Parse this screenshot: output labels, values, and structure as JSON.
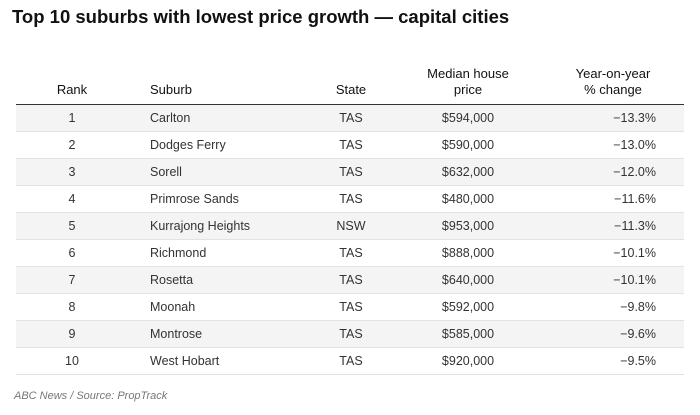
{
  "title": "Top 10 suburbs with lowest price growth — capital cities",
  "columns": {
    "rank": "Rank",
    "suburb": "Suburb",
    "state": "State",
    "price_line1": "Median house",
    "price_line2": "price",
    "change_line1": "Year-on-year",
    "change_line2": "% change"
  },
  "rows": [
    {
      "rank": "1",
      "suburb": "Carlton",
      "state": "TAS",
      "price": "$594,000",
      "change": "−13.3%"
    },
    {
      "rank": "2",
      "suburb": "Dodges Ferry",
      "state": "TAS",
      "price": "$590,000",
      "change": "−13.0%"
    },
    {
      "rank": "3",
      "suburb": "Sorell",
      "state": "TAS",
      "price": "$632,000",
      "change": "−12.0%"
    },
    {
      "rank": "4",
      "suburb": "Primrose Sands",
      "state": "TAS",
      "price": "$480,000",
      "change": "−11.6%"
    },
    {
      "rank": "5",
      "suburb": "Kurrajong Heights",
      "state": "NSW",
      "price": "$953,000",
      "change": "−11.3%"
    },
    {
      "rank": "6",
      "suburb": "Richmond",
      "state": "TAS",
      "price": "$888,000",
      "change": "−10.1%"
    },
    {
      "rank": "7",
      "suburb": "Rosetta",
      "state": "TAS",
      "price": "$640,000",
      "change": "−10.1%"
    },
    {
      "rank": "8",
      "suburb": "Moonah",
      "state": "TAS",
      "price": "$592,000",
      "change": "−9.8%"
    },
    {
      "rank": "9",
      "suburb": "Montrose",
      "state": "TAS",
      "price": "$585,000",
      "change": "−9.6%"
    },
    {
      "rank": "10",
      "suburb": "West Hobart",
      "state": "TAS",
      "price": "$920,000",
      "change": "−9.5%"
    }
  ],
  "source": "ABC News / Source: PropTrack"
}
